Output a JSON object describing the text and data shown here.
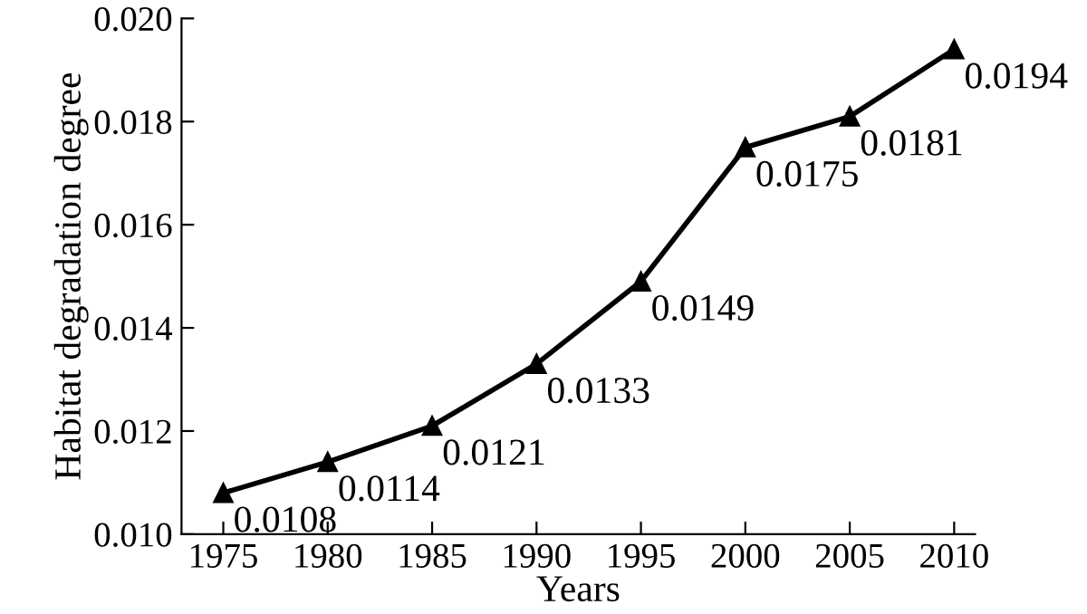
{
  "chart_data": {
    "type": "line",
    "xlabel": "Years",
    "ylabel": "Habitat degradation degree",
    "x": [
      1975,
      1980,
      1985,
      1990,
      1995,
      2000,
      2005,
      2010
    ],
    "series": [
      {
        "color": "#000000",
        "values": [
          0.0108,
          0.0114,
          0.0121,
          0.0133,
          0.0149,
          0.0175,
          0.0181,
          0.0194
        ]
      }
    ],
    "xlim": [
      1973,
      2011
    ],
    "xticks": [
      1975,
      1980,
      1985,
      1990,
      1995,
      2000,
      2005,
      2010
    ],
    "ylim": [
      0.01,
      0.02
    ],
    "yticks": [
      {
        "value": 0.01,
        "label": "0.010"
      },
      {
        "value": 0.012,
        "label": "0.012"
      },
      {
        "value": 0.014,
        "label": "0.014"
      },
      {
        "value": 0.016,
        "label": "0.016"
      },
      {
        "value": 0.018,
        "label": "0.018"
      },
      {
        "value": 0.02,
        "label": "0.020"
      }
    ],
    "marker": "triangle",
    "line_style": "solid",
    "data_labels": true,
    "grid": false,
    "legend": false
  }
}
